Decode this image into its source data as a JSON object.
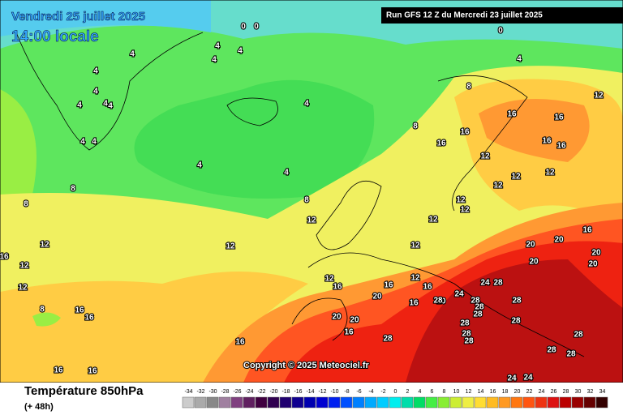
{
  "header": {
    "title": "Vendredi 25 juillet 2025",
    "time": "14:00 locale",
    "run": "Run GFS 12 Z du Mercredi 23 juillet 2025"
  },
  "copyright": "Copyright © 2025 Meteociel.fr",
  "legend": {
    "title": "Température 850hPa",
    "lead": "(+ 48h)",
    "scale": [
      -34,
      -32,
      -30,
      -28,
      -26,
      -24,
      -22,
      -20,
      -18,
      -16,
      -14,
      -12,
      -10,
      -8,
      -6,
      -4,
      -2,
      0,
      2,
      4,
      6,
      8,
      10,
      12,
      14,
      16,
      18,
      20,
      22,
      24,
      26,
      28,
      30,
      32,
      34
    ]
  },
  "map": {
    "labels": [
      "0",
      "0",
      "0",
      "4",
      "4",
      "4",
      "4",
      "4",
      "4",
      "4",
      "4",
      "4",
      "4",
      "4",
      "4",
      "4",
      "4",
      "4",
      "8",
      "8",
      "8",
      "8",
      "8",
      "8",
      "12",
      "12",
      "12",
      "12",
      "12",
      "12",
      "12",
      "12",
      "12",
      "12",
      "12",
      "12",
      "12",
      "12",
      "12",
      "12",
      "16",
      "16",
      "16",
      "16",
      "16",
      "16",
      "16",
      "16",
      "16",
      "16",
      "16",
      "16",
      "16",
      "16",
      "16",
      "16",
      "16",
      "16",
      "20",
      "20",
      "20",
      "20",
      "20",
      "20",
      "20",
      "20",
      "20",
      "24",
      "24",
      "24",
      "24",
      "28",
      "28",
      "28",
      "28",
      "28",
      "28",
      "28",
      "28",
      "28",
      "28",
      "28",
      "28",
      "28",
      "28"
    ]
  }
}
